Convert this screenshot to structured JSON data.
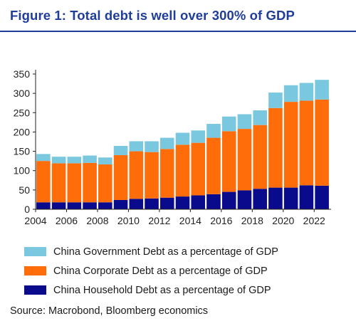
{
  "chart_data": {
    "type": "bar",
    "stacked": true,
    "title": "Figure 1: Total debt is well over 300% of GDP",
    "xlabel": "",
    "ylabel": "",
    "ylim": [
      0,
      350
    ],
    "yticks": [
      0,
      50,
      100,
      150,
      200,
      250,
      300,
      350
    ],
    "xtick_labels": [
      "2004",
      "2006",
      "2008",
      "2010",
      "2012",
      "2014",
      "2016",
      "2018",
      "2020",
      "2022"
    ],
    "categories": [
      "2004",
      "2005",
      "2006",
      "2007",
      "2008",
      "2009",
      "2010",
      "2011",
      "2012",
      "2013",
      "2014",
      "2015",
      "2016",
      "2017",
      "2018",
      "2019",
      "2020",
      "2021",
      "2022"
    ],
    "series": [
      {
        "name": "China Household Debt as a percentage of GDP",
        "color": "#0a0a8c",
        "values": [
          18,
          18,
          18,
          18,
          18,
          24,
          27,
          28,
          30,
          33,
          36,
          39,
          45,
          49,
          53,
          56,
          56,
          62,
          61
        ]
      },
      {
        "name": "China Corporate Debt as a percentage of GDP",
        "color": "#ff6d0a",
        "values": [
          107,
          101,
          101,
          102,
          98,
          116,
          123,
          120,
          126,
          134,
          136,
          146,
          157,
          159,
          165,
          206,
          222,
          219,
          223
        ]
      },
      {
        "name": "China Government Debt as a percentage of GDP",
        "color": "#7ac8e0",
        "values": [
          18,
          17,
          17,
          19,
          18,
          24,
          26,
          28,
          29,
          31,
          32,
          36,
          38,
          38,
          38,
          40,
          43,
          46,
          51
        ]
      }
    ],
    "grid": false,
    "legend_position": "bottom"
  },
  "legend": [
    {
      "label": "China Government Debt as a percentage of GDP",
      "color": "#7ac8e0"
    },
    {
      "label": "China Corporate Debt as a percentage of GDP",
      "color": "#ff6d0a"
    },
    {
      "label": "China Household Debt as a percentage of GDP",
      "color": "#0a0a8c"
    }
  ],
  "source": "Source: Macrobond, Bloomberg economics"
}
